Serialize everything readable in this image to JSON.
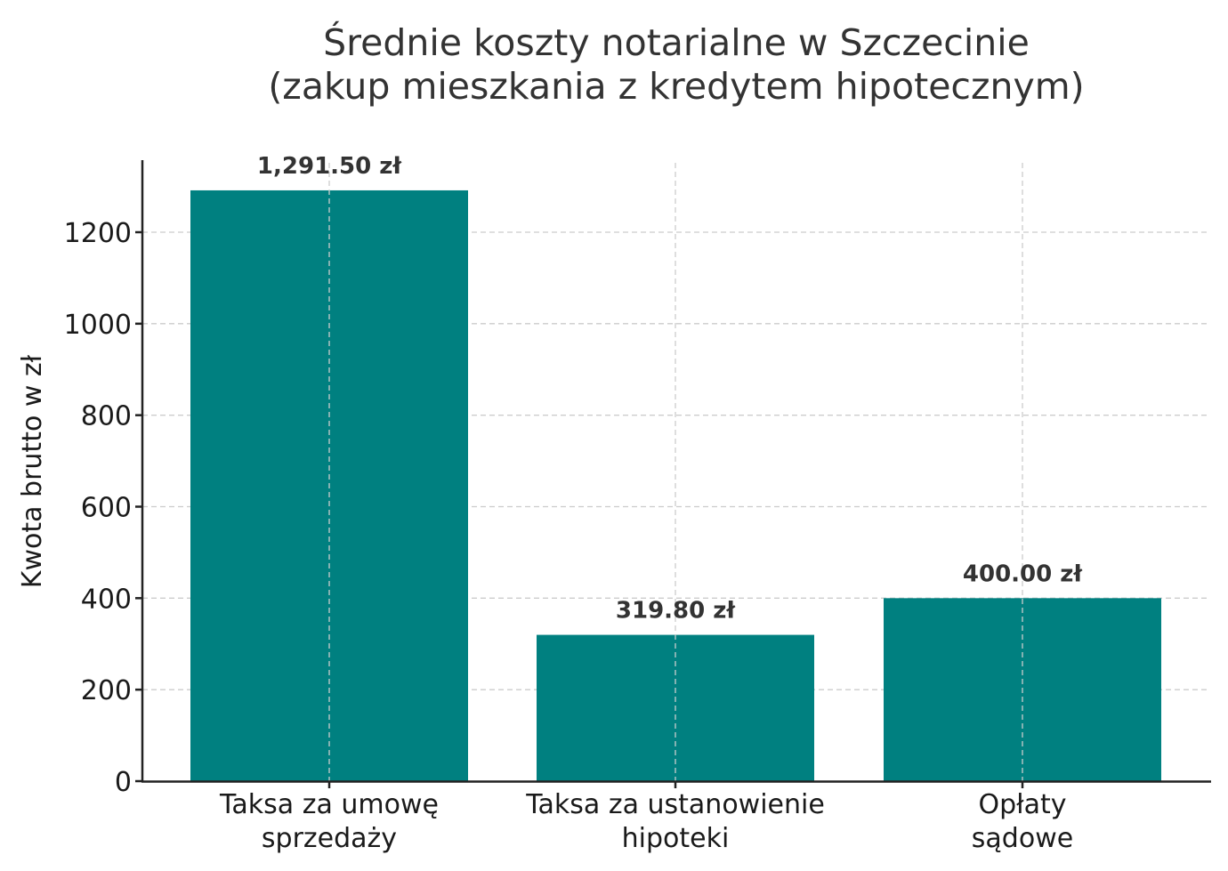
{
  "chart_data": {
    "type": "bar",
    "title": "Średnie koszty notarialne w Szczecinie\n(zakup mieszkania z kredytem hipotecznym)",
    "title_lines": [
      "Średnie koszty notarialne w Szczecinie",
      "(zakup mieszkania z kredytem hipotecznym)"
    ],
    "xlabel": "",
    "ylabel": "Kwota brutto w zł",
    "categories": [
      "Taksa za umowę sprzedaży",
      "Taksa za ustanowienie hipoteki",
      "Opłaty sądowe"
    ],
    "category_lines": [
      [
        "Taksa za umowę",
        "sprzedaży"
      ],
      [
        "Taksa za ustanowienie",
        "hipoteki"
      ],
      [
        "Opłaty",
        "sądowe"
      ]
    ],
    "values": [
      1291.5,
      319.8,
      400.0
    ],
    "value_labels": [
      "1,291.50 zł",
      "319.80 zł",
      "400.00 zł"
    ],
    "yticks": [
      0,
      200,
      400,
      600,
      800,
      1000,
      1200
    ],
    "ylim": [
      0,
      1356
    ],
    "grid": true,
    "legend": null,
    "bar_color": "#008080"
  }
}
